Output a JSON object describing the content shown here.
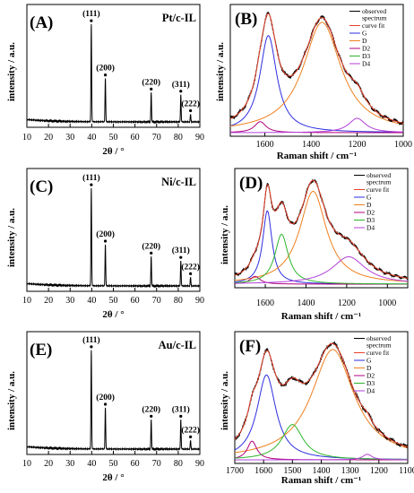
{
  "chart_data": [
    {
      "type": "line",
      "panel": "(A)",
      "sample": "Pt/c-IL",
      "xlabel": "2θ / °",
      "ylabel": "intensity / a.u.",
      "xlim": [
        10,
        90
      ],
      "xticks": [
        10,
        20,
        30,
        40,
        50,
        60,
        70,
        80,
        90
      ],
      "peaks": [
        {
          "x": 39.8,
          "height": 0.9,
          "label": "(111)"
        },
        {
          "x": 46.3,
          "height": 0.4,
          "label": "(200)"
        },
        {
          "x": 67.5,
          "height": 0.27,
          "label": "(220)"
        },
        {
          "x": 81.2,
          "height": 0.25,
          "label": "(311)"
        },
        {
          "x": 85.7,
          "height": 0.07,
          "label": "(222)"
        }
      ]
    },
    {
      "type": "line",
      "panel": "(B)",
      "xlabel": "Raman shift / cm⁻¹",
      "ylabel": "intensity / a.u.",
      "xlim": [
        1750,
        1000
      ],
      "xticks": [
        1600,
        1400,
        1200,
        1000
      ],
      "legend": [
        "observed spectrum",
        "curve fit",
        "G",
        "D",
        "D2",
        "D3",
        "D4"
      ],
      "legend_position": "top-right",
      "series": [
        {
          "name": "observed spectrum",
          "color": "#000000"
        },
        {
          "name": "curve fit",
          "color": "#e8412a"
        },
        {
          "name": "G",
          "color": "#2e2ee0",
          "center": 1585,
          "height": 0.88,
          "width": 45
        },
        {
          "name": "D",
          "color": "#f07f1e",
          "center": 1352,
          "height": 1.0,
          "width": 100
        },
        {
          "name": "D2",
          "color": "#b0007e",
          "center": 1620,
          "height": 0.1,
          "width": 30
        },
        {
          "name": "D3",
          "color": "#2cb52c",
          "center": 1500,
          "height": 0.0,
          "width": 60
        },
        {
          "name": "D4",
          "color": "#b341d9",
          "center": 1200,
          "height": 0.13,
          "width": 45
        }
      ]
    },
    {
      "type": "line",
      "panel": "(C)",
      "sample": "Ni/c-IL",
      "xlabel": "2θ / °",
      "ylabel": "intensity / a.u.",
      "xlim": [
        10,
        90
      ],
      "xticks": [
        10,
        20,
        30,
        40,
        50,
        60,
        70,
        80,
        90
      ],
      "peaks": [
        {
          "x": 39.8,
          "height": 0.9,
          "label": "(111)"
        },
        {
          "x": 46.3,
          "height": 0.38,
          "label": "(200)"
        },
        {
          "x": 67.5,
          "height": 0.27,
          "label": "(220)"
        },
        {
          "x": 81.2,
          "height": 0.23,
          "label": "(311)"
        },
        {
          "x": 85.7,
          "height": 0.08,
          "label": "(222)"
        }
      ]
    },
    {
      "type": "line",
      "panel": "(D)",
      "xlabel": "Raman shift / cm⁻¹",
      "ylabel": "intensity / a.u.",
      "xlim": [
        1750,
        900
      ],
      "xticks": [
        1600,
        1400,
        1200,
        1000
      ],
      "legend": [
        "observed spectrum",
        "curve fit",
        "G",
        "D",
        "D2",
        "D3",
        "D4"
      ],
      "legend_position": "top-right",
      "series": [
        {
          "name": "observed spectrum",
          "color": "#000000"
        },
        {
          "name": "curve fit",
          "color": "#e8412a"
        },
        {
          "name": "G",
          "color": "#2e2ee0",
          "center": 1590,
          "height": 0.75,
          "width": 28
        },
        {
          "name": "D",
          "color": "#f07f1e",
          "center": 1365,
          "height": 0.95,
          "width": 80
        },
        {
          "name": "D2",
          "color": "#b0007e",
          "center": 1650,
          "height": 0.08,
          "width": 30
        },
        {
          "name": "D3",
          "color": "#2cb52c",
          "center": 1520,
          "height": 0.51,
          "width": 40
        },
        {
          "name": "D4",
          "color": "#b341d9",
          "center": 1190,
          "height": 0.28,
          "width": 100
        }
      ]
    },
    {
      "type": "line",
      "panel": "(E)",
      "sample": "Au/c-IL",
      "xlabel": "2θ / °",
      "ylabel": "intensity / a.u.",
      "xlim": [
        10,
        90
      ],
      "xticks": [
        10,
        20,
        30,
        40,
        50,
        60,
        70,
        80,
        90
      ],
      "peaks": [
        {
          "x": 39.8,
          "height": 0.91,
          "label": "(111)"
        },
        {
          "x": 46.3,
          "height": 0.38,
          "label": "(200)"
        },
        {
          "x": 67.5,
          "height": 0.27,
          "label": "(220)"
        },
        {
          "x": 81.2,
          "height": 0.27,
          "label": "(311)"
        },
        {
          "x": 85.7,
          "height": 0.08,
          "label": "(222)"
        }
      ]
    },
    {
      "type": "line",
      "panel": "(F)",
      "xlabel": "Raman shift / cm⁻¹",
      "ylabel": "intensity / a.u.",
      "xlim": [
        1700,
        1100
      ],
      "xticks": [
        1700,
        1600,
        1500,
        1400,
        1300,
        1200,
        1100
      ],
      "legend": [
        "observed spectrum",
        "curve fit",
        "G",
        "D",
        "D2",
        "D3",
        "D4"
      ],
      "legend_position": "top-right",
      "series": [
        {
          "name": "observed spectrum",
          "color": "#000000"
        },
        {
          "name": "curve fit",
          "color": "#e8412a"
        },
        {
          "name": "G",
          "color": "#2e2ee0",
          "center": 1590,
          "height": 0.77,
          "width": 40
        },
        {
          "name": "D",
          "color": "#f07f1e",
          "center": 1360,
          "height": 1.0,
          "width": 90
        },
        {
          "name": "D2",
          "color": "#b0007e",
          "center": 1640,
          "height": 0.17,
          "width": 20
        },
        {
          "name": "D3",
          "color": "#2cb52c",
          "center": 1500,
          "height": 0.32,
          "width": 45
        },
        {
          "name": "D4",
          "color": "#b341d9",
          "center": 1240,
          "height": 0.05,
          "width": 20
        }
      ]
    }
  ]
}
